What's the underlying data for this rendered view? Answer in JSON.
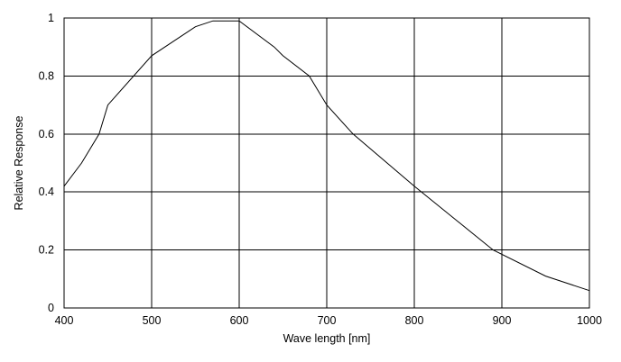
{
  "chart_data": {
    "type": "line",
    "title": "",
    "xlabel": "Wave length [nm]",
    "ylabel": "Relative Response",
    "xlim": [
      400,
      1000
    ],
    "ylim": [
      0,
      1
    ],
    "grid": true,
    "x_ticks": [
      400,
      500,
      600,
      700,
      800,
      900,
      1000
    ],
    "y_ticks": [
      0,
      0.2,
      0.4,
      0.6,
      0.8,
      1
    ],
    "x_tick_labels": [
      "400",
      "500",
      "600",
      "700",
      "800",
      "900",
      "1000"
    ],
    "y_tick_labels": [
      "0",
      "0.2",
      "0.4",
      "0.6",
      "0.8",
      "1"
    ],
    "series": [
      {
        "x": [
          400,
          420,
          440,
          450,
          500,
          550,
          570,
          600,
          640,
          650,
          680,
          700,
          730,
          800,
          890,
          950,
          1000
        ],
        "y": [
          0.42,
          0.5,
          0.6,
          0.7,
          0.87,
          0.97,
          0.99,
          0.99,
          0.9,
          0.87,
          0.8,
          0.7,
          0.6,
          0.42,
          0.2,
          0.11,
          0.06
        ]
      }
    ]
  }
}
